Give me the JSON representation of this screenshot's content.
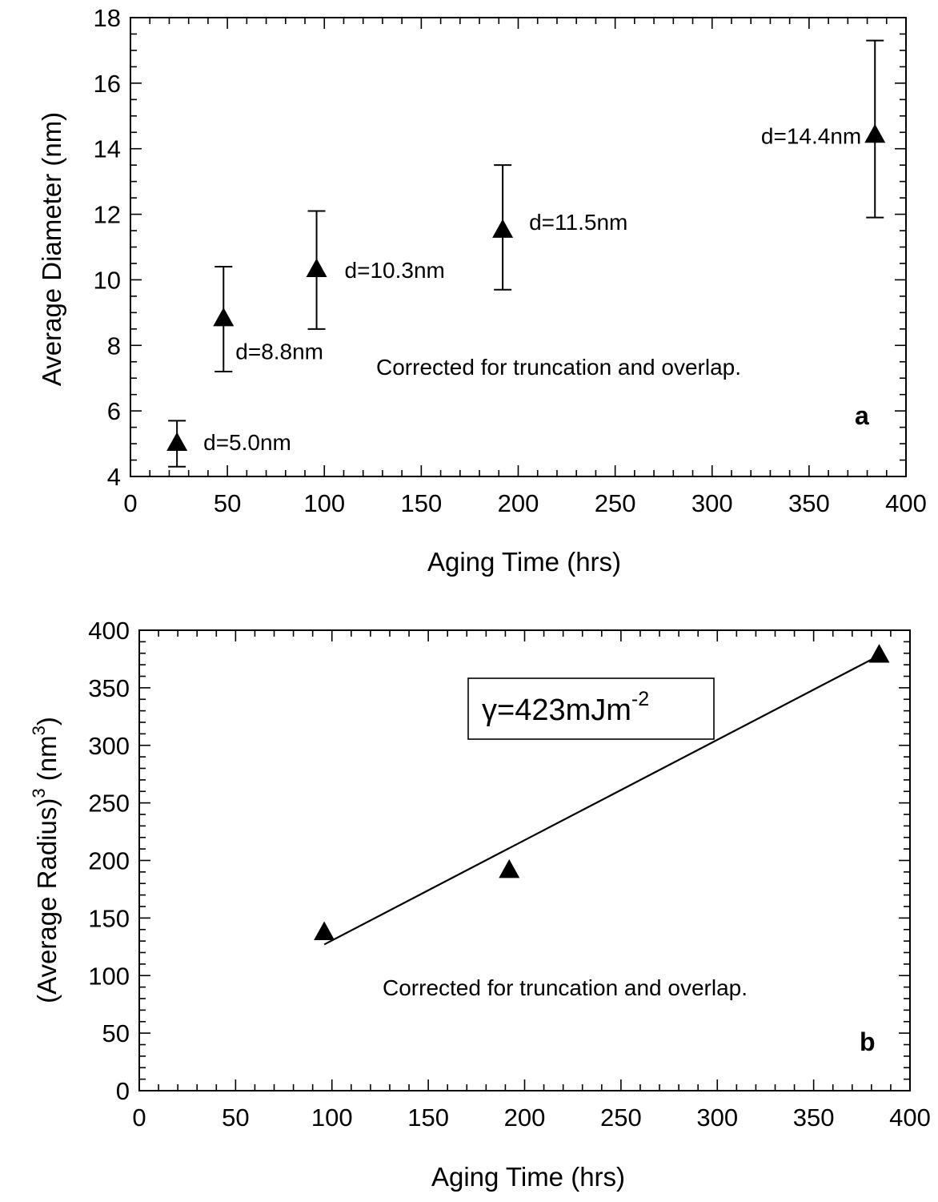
{
  "chart_data": [
    {
      "type": "scatter",
      "panel_label": "a",
      "xlabel": "Aging Time (hrs)",
      "ylabel": "Average Diameter (nm)",
      "xlim": [
        0,
        400
      ],
      "ylim": [
        4,
        18
      ],
      "xticks": [
        "0",
        "50",
        "100",
        "150",
        "200",
        "250",
        "300",
        "350",
        "400"
      ],
      "yticks": [
        "4",
        "6",
        "8",
        "10",
        "12",
        "14",
        "16",
        "18"
      ],
      "note": "Corrected for truncation and overlap.",
      "marker": "filled-triangle",
      "points": [
        {
          "x": 24,
          "y": 5.0,
          "err_low": 4.3,
          "err_high": 5.7,
          "label": "d=5.0nm"
        },
        {
          "x": 48,
          "y": 8.8,
          "err_low": 7.2,
          "err_high": 10.4,
          "label": "d=8.8nm"
        },
        {
          "x": 96,
          "y": 10.3,
          "err_low": 8.5,
          "err_high": 12.1,
          "label": "d=10.3nm"
        },
        {
          "x": 192,
          "y": 11.5,
          "err_low": 9.7,
          "err_high": 13.5,
          "label": "d=11.5nm"
        },
        {
          "x": 384,
          "y": 14.4,
          "err_low": 11.9,
          "err_high": 17.3,
          "label": "d=14.4nm"
        }
      ]
    },
    {
      "type": "scatter",
      "panel_label": "b",
      "xlabel": "Aging Time (hrs)",
      "ylabel_main": "(Average Radius)",
      "ylabel_sup": "3",
      "ylabel_unit": "(nm",
      "ylabel_unit_sup": "3",
      "ylabel_unit_close": ")",
      "xlim": [
        0,
        400
      ],
      "ylim": [
        0,
        400
      ],
      "xticks": [
        "0",
        "50",
        "100",
        "150",
        "200",
        "250",
        "300",
        "350",
        "400"
      ],
      "yticks": [
        "0",
        "50",
        "100",
        "150",
        "200",
        "250",
        "300",
        "350",
        "400"
      ],
      "note": "Corrected for truncation and overlap.",
      "marker": "filled-triangle",
      "points": [
        {
          "x": 96,
          "y": 137
        },
        {
          "x": 192,
          "y": 191
        },
        {
          "x": 384,
          "y": 378
        }
      ],
      "fit_line": {
        "x": [
          96,
          384
        ],
        "y": [
          127,
          378
        ]
      },
      "legend_box": {
        "prefix": "γ=423mJm",
        "sup": "-2",
        "placement": "upper-middle"
      }
    }
  ]
}
